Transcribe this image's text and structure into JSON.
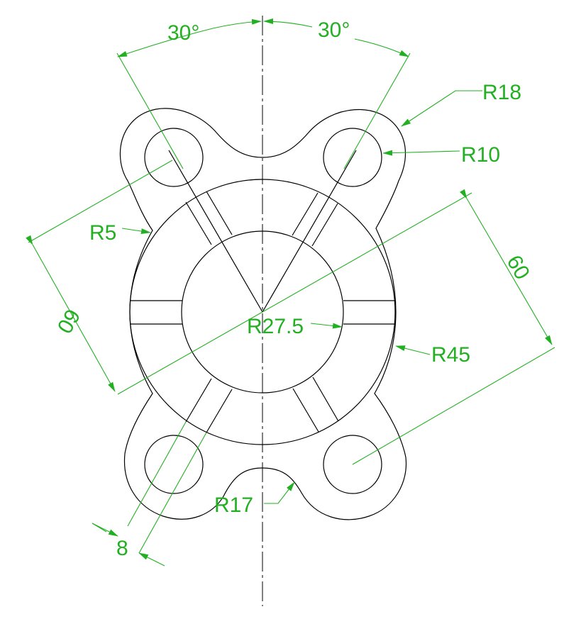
{
  "dimensions": {
    "angle_left": "30°",
    "angle_right": "30°",
    "r18": "R18",
    "r10": "R10",
    "r5": "R5",
    "r27_5": "R27.5",
    "r45": "R45",
    "r17": "R17",
    "dist_left": "60",
    "dist_right": "60",
    "width_slot": "8"
  },
  "colors": {
    "geometry": "#000000",
    "dimension": "#22b022",
    "background": "#ffffff"
  }
}
